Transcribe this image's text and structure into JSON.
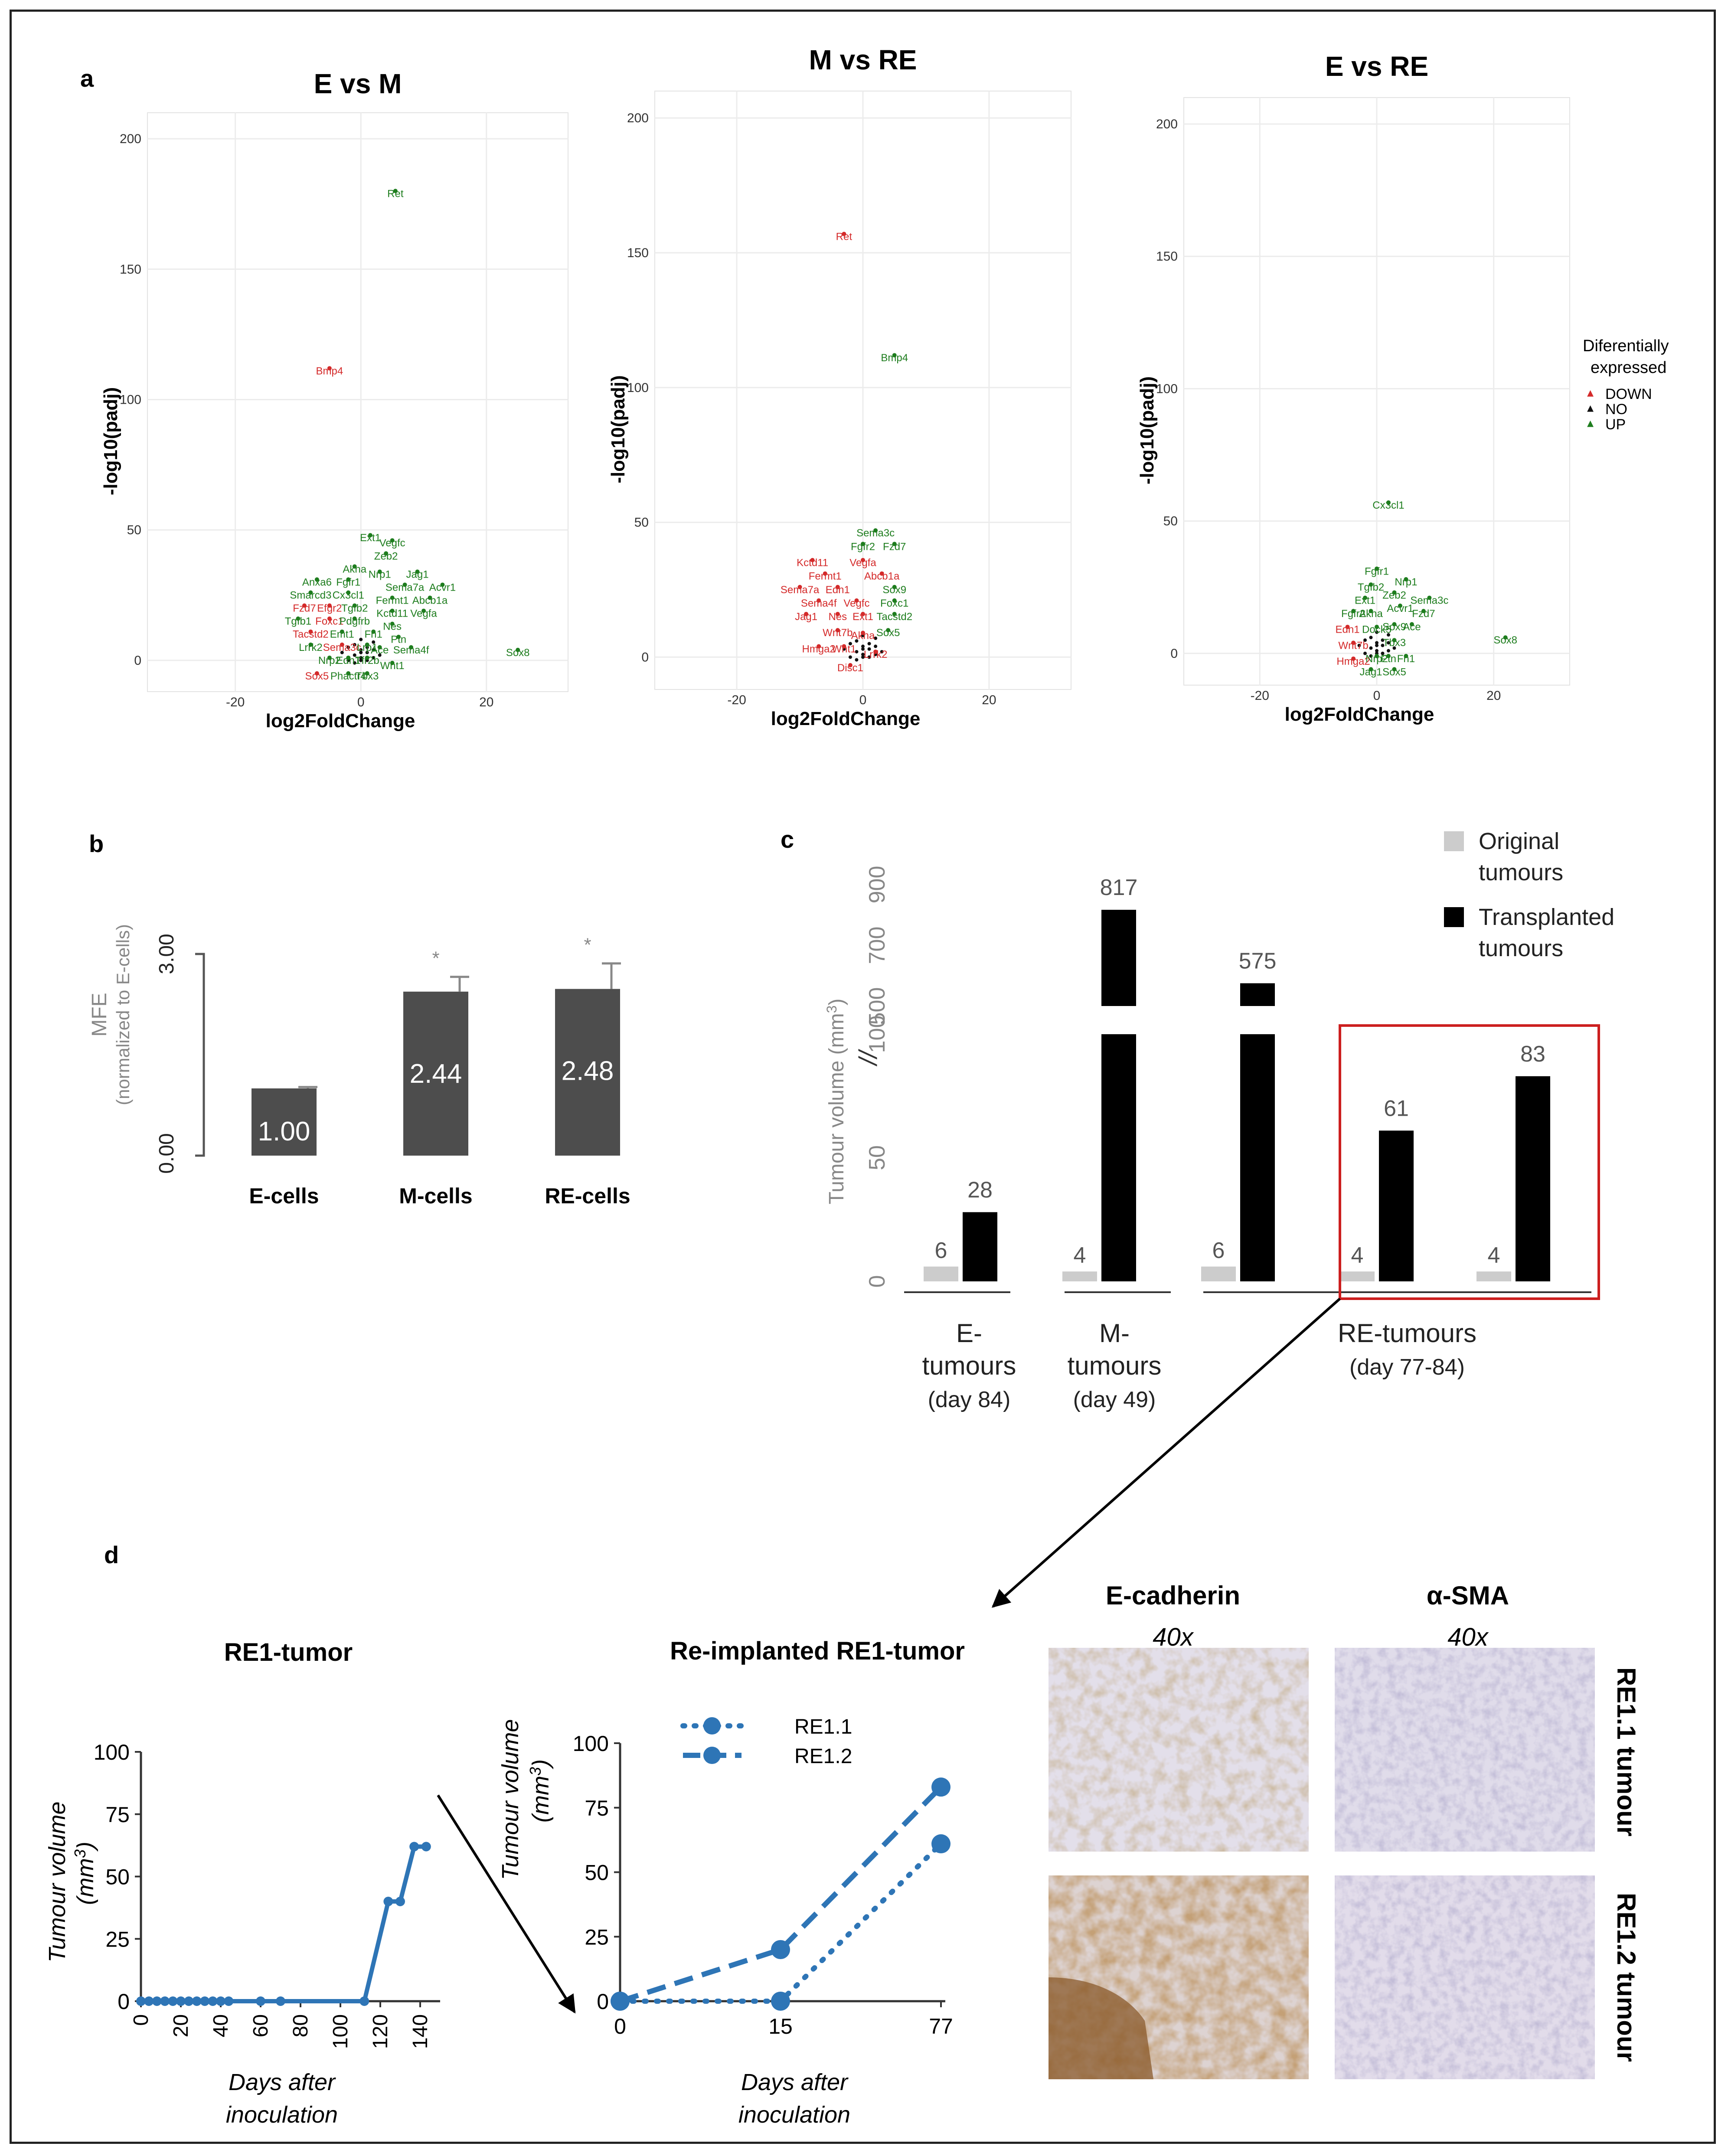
{
  "panel_labels": {
    "a": "a",
    "b": "b",
    "c": "c",
    "d": "d"
  },
  "colors": {
    "down": "#d42a2a",
    "up": "#1e7d1e",
    "no": "#111111",
    "bar_dark": "#4d4d4d",
    "bar_black": "#000000",
    "bar_light": "#cccccc",
    "line_blue": "#2e75b6",
    "highlight": "#cc1f1f"
  },
  "chart_data": [
    {
      "type": "scatter",
      "id": "volcano1",
      "title": "E vs M",
      "xlabel": "log2FoldChange",
      "ylabel": "-log10(padj)",
      "xlim": [
        -34,
        33
      ],
      "ylim": [
        -12,
        210
      ],
      "xticks": [
        -20,
        0,
        20
      ],
      "yticks": [
        0,
        50,
        100,
        150,
        200
      ],
      "labeled_points": [
        {
          "label": "Ret",
          "x": 5.5,
          "y": 180,
          "dir": "UP"
        },
        {
          "label": "Bmp4",
          "x": -5,
          "y": 112,
          "dir": "DOWN"
        },
        {
          "label": "Ext1",
          "x": 1.5,
          "y": 48,
          "dir": "UP"
        },
        {
          "label": "Vegfc",
          "x": 5,
          "y": 46,
          "dir": "UP"
        },
        {
          "label": "Zeb2",
          "x": 4,
          "y": 41,
          "dir": "UP"
        },
        {
          "label": "Akna",
          "x": -1,
          "y": 36,
          "dir": "UP"
        },
        {
          "label": "Nrp1",
          "x": 3,
          "y": 34,
          "dir": "UP"
        },
        {
          "label": "Jag1",
          "x": 9,
          "y": 34,
          "dir": "UP"
        },
        {
          "label": "Anxa6",
          "x": -7,
          "y": 31,
          "dir": "UP"
        },
        {
          "label": "Fgfr1",
          "x": -2,
          "y": 31,
          "dir": "UP"
        },
        {
          "label": "Sema7a",
          "x": 7,
          "y": 29,
          "dir": "UP"
        },
        {
          "label": "Acvr1",
          "x": 13,
          "y": 29,
          "dir": "UP"
        },
        {
          "label": "Smarcd3",
          "x": -8,
          "y": 26,
          "dir": "UP"
        },
        {
          "label": "Cx3cl1",
          "x": -2,
          "y": 26,
          "dir": "UP"
        },
        {
          "label": "Fermt1",
          "x": 5,
          "y": 24,
          "dir": "UP"
        },
        {
          "label": "Abcb1a",
          "x": 11,
          "y": 24,
          "dir": "UP"
        },
        {
          "label": "Fzd7",
          "x": -9,
          "y": 21,
          "dir": "DOWN"
        },
        {
          "label": "Efgr2",
          "x": -5,
          "y": 21,
          "dir": "DOWN"
        },
        {
          "label": "Tgfb2",
          "x": -1,
          "y": 21,
          "dir": "UP"
        },
        {
          "label": "Kctd11",
          "x": 5,
          "y": 19,
          "dir": "UP"
        },
        {
          "label": "Vegfa",
          "x": 10,
          "y": 19,
          "dir": "UP"
        },
        {
          "label": "Tgfb1",
          "x": -10,
          "y": 16,
          "dir": "UP"
        },
        {
          "label": "Foxc1",
          "x": -5,
          "y": 16,
          "dir": "DOWN"
        },
        {
          "label": "Pdgfrb",
          "x": -1,
          "y": 16,
          "dir": "UP"
        },
        {
          "label": "Nes",
          "x": 5,
          "y": 14,
          "dir": "UP"
        },
        {
          "label": "Tacstd2",
          "x": -8,
          "y": 11,
          "dir": "DOWN"
        },
        {
          "label": "Emt1",
          "x": -3,
          "y": 11,
          "dir": "UP"
        },
        {
          "label": "Fn1",
          "x": 2,
          "y": 11,
          "dir": "UP"
        },
        {
          "label": "Ptn",
          "x": 6,
          "y": 9,
          "dir": "UP"
        },
        {
          "label": "Lrrk2",
          "x": -8,
          "y": 6,
          "dir": "UP"
        },
        {
          "label": "Sema3c",
          "x": -3,
          "y": 6,
          "dir": "DOWN"
        },
        {
          "label": "Lrp1",
          "x": 1,
          "y": 6,
          "dir": "UP"
        },
        {
          "label": "Ace",
          "x": 3,
          "y": 5,
          "dir": "UP"
        },
        {
          "label": "Sema4f",
          "x": 8,
          "y": 5,
          "dir": "UP"
        },
        {
          "label": "Nrp2",
          "x": -5,
          "y": 1,
          "dir": "UP"
        },
        {
          "label": "Edn1",
          "x": -2,
          "y": 1,
          "dir": "UP"
        },
        {
          "label": "Tfr2b",
          "x": 1,
          "y": 1,
          "dir": "UP"
        },
        {
          "label": "Wnt1",
          "x": 5,
          "y": -1,
          "dir": "UP"
        },
        {
          "label": "Sox8",
          "x": 25,
          "y": 4,
          "dir": "UP"
        },
        {
          "label": "Sox5",
          "x": -7,
          "y": -5,
          "dir": "DOWN"
        },
        {
          "label": "Phactr4",
          "x": -2,
          "y": -5,
          "dir": "UP"
        },
        {
          "label": "Tbx3",
          "x": 1,
          "y": -5,
          "dir": "UP"
        }
      ]
    },
    {
      "type": "scatter",
      "id": "volcano2",
      "title": "M vs RE",
      "xlabel": "log2FoldChange",
      "ylabel": "-log10(padj)",
      "xlim": [
        -33,
        33
      ],
      "ylim": [
        -12,
        210
      ],
      "xticks": [
        -20,
        0,
        20
      ],
      "yticks": [
        0,
        50,
        100,
        150,
        200
      ],
      "labeled_points": [
        {
          "label": "Ret",
          "x": -3,
          "y": 157,
          "dir": "DOWN"
        },
        {
          "label": "Bmp4",
          "x": 5,
          "y": 112,
          "dir": "UP"
        },
        {
          "label": "Sema3c",
          "x": 2,
          "y": 47,
          "dir": "UP"
        },
        {
          "label": "Fgfr2",
          "x": 0,
          "y": 42,
          "dir": "UP"
        },
        {
          "label": "Fzd7",
          "x": 5,
          "y": 42,
          "dir": "UP"
        },
        {
          "label": "Kctd11",
          "x": -8,
          "y": 36,
          "dir": "DOWN"
        },
        {
          "label": "Vegfa",
          "x": 0,
          "y": 36,
          "dir": "DOWN"
        },
        {
          "label": "Fermt1",
          "x": -6,
          "y": 31,
          "dir": "DOWN"
        },
        {
          "label": "Abcb1a",
          "x": 3,
          "y": 31,
          "dir": "DOWN"
        },
        {
          "label": "Sema7a",
          "x": -10,
          "y": 26,
          "dir": "DOWN"
        },
        {
          "label": "Edn1",
          "x": -4,
          "y": 26,
          "dir": "DOWN"
        },
        {
          "label": "Sox9",
          "x": 5,
          "y": 26,
          "dir": "UP"
        },
        {
          "label": "Sema4f",
          "x": -7,
          "y": 21,
          "dir": "DOWN"
        },
        {
          "label": "Vegfc",
          "x": -1,
          "y": 21,
          "dir": "DOWN"
        },
        {
          "label": "Foxc1",
          "x": 5,
          "y": 21,
          "dir": "UP"
        },
        {
          "label": "Jag1",
          "x": -9,
          "y": 16,
          "dir": "DOWN"
        },
        {
          "label": "Nes",
          "x": -4,
          "y": 16,
          "dir": "DOWN"
        },
        {
          "label": "Ext1",
          "x": 0,
          "y": 16,
          "dir": "DOWN"
        },
        {
          "label": "Tacstd2",
          "x": 5,
          "y": 16,
          "dir": "UP"
        },
        {
          "label": "Wnt7b",
          "x": -4,
          "y": 10,
          "dir": "DOWN"
        },
        {
          "label": "Akna",
          "x": 0,
          "y": 9,
          "dir": "DOWN"
        },
        {
          "label": "Sox5",
          "x": 4,
          "y": 10,
          "dir": "UP"
        },
        {
          "label": "Hmga2",
          "x": -7,
          "y": 4,
          "dir": "DOWN"
        },
        {
          "label": "Wnt1",
          "x": -3,
          "y": 4,
          "dir": "DOWN"
        },
        {
          "label": "Lrrk2",
          "x": 2,
          "y": 2,
          "dir": "DOWN"
        },
        {
          "label": "Disc1",
          "x": -2,
          "y": -3,
          "dir": "DOWN"
        }
      ]
    },
    {
      "type": "scatter",
      "id": "volcano3",
      "title": "E vs RE",
      "xlabel": "log2FoldChange",
      "ylabel": "-log10(padj)",
      "xlim": [
        -33,
        33
      ],
      "ylim": [
        -12,
        210
      ],
      "xticks": [
        -20,
        0,
        20
      ],
      "yticks": [
        0,
        50,
        100,
        150,
        200
      ],
      "legend": {
        "title": "Diferentially expressed",
        "entries": [
          "DOWN",
          "NO",
          "UP"
        ],
        "position": "right"
      },
      "labeled_points": [
        {
          "label": "Cx3cl1",
          "x": 2,
          "y": 57,
          "dir": "UP"
        },
        {
          "label": "Fgfr1",
          "x": 0,
          "y": 32,
          "dir": "UP"
        },
        {
          "label": "Nrp1",
          "x": 5,
          "y": 28,
          "dir": "UP"
        },
        {
          "label": "Tgfb2",
          "x": -1,
          "y": 26,
          "dir": "UP"
        },
        {
          "label": "Zeb2",
          "x": 3,
          "y": 23,
          "dir": "UP"
        },
        {
          "label": "Sema3c",
          "x": 9,
          "y": 21,
          "dir": "UP"
        },
        {
          "label": "Ext1",
          "x": -2,
          "y": 21,
          "dir": "UP"
        },
        {
          "label": "Acvr1",
          "x": 4,
          "y": 18,
          "dir": "UP"
        },
        {
          "label": "Fzd7",
          "x": 8,
          "y": 16,
          "dir": "UP"
        },
        {
          "label": "Fgfr2",
          "x": -4,
          "y": 16,
          "dir": "UP"
        },
        {
          "label": "Akna",
          "x": -1,
          "y": 16,
          "dir": "UP"
        },
        {
          "label": "Edn1",
          "x": -5,
          "y": 10,
          "dir": "DOWN"
        },
        {
          "label": "Dock5",
          "x": 0,
          "y": 10,
          "dir": "UP"
        },
        {
          "label": "Sox9",
          "x": 3,
          "y": 11,
          "dir": "UP"
        },
        {
          "label": "Ace",
          "x": 6,
          "y": 11,
          "dir": "UP"
        },
        {
          "label": "Wnt7b",
          "x": -4,
          "y": 4,
          "dir": "DOWN"
        },
        {
          "label": "Tbx3",
          "x": 3,
          "y": 5,
          "dir": "UP"
        },
        {
          "label": "Hmga2",
          "x": -4,
          "y": -2,
          "dir": "DOWN"
        },
        {
          "label": "Nrp2",
          "x": 0,
          "y": -1,
          "dir": "UP"
        },
        {
          "label": "Ptn",
          "x": 2,
          "y": -1,
          "dir": "UP"
        },
        {
          "label": "Fn1",
          "x": 5,
          "y": -1,
          "dir": "UP"
        },
        {
          "label": "Jag1",
          "x": -1,
          "y": -6,
          "dir": "UP"
        },
        {
          "label": "Sox5",
          "x": 3,
          "y": -6,
          "dir": "UP"
        },
        {
          "label": "Sox8",
          "x": 22,
          "y": 6,
          "dir": "UP"
        }
      ]
    },
    {
      "type": "bar",
      "id": "mfe",
      "categories": [
        "E-cells",
        "M-cells",
        "RE-cells"
      ],
      "values": [
        1.0,
        2.44,
        2.48
      ],
      "value_labels": [
        "1.00",
        "2.44",
        "2.48"
      ],
      "errors": [
        0.02,
        0.22,
        0.38
      ],
      "significance": [
        "",
        "*",
        "*"
      ],
      "ylabel": "MFE",
      "ylabel2": "(normalized to E-cells)",
      "ylim": [
        0,
        3
      ],
      "yticks": [
        "0.00",
        "3.00"
      ]
    },
    {
      "type": "bar",
      "id": "volume",
      "ylabel": "Tumour volume (mm",
      "ylabel_sup": "3",
      "ylabel_close": ")",
      "axis_break": "//",
      "lower_ticks": [
        "0",
        "50",
        "100"
      ],
      "upper_ticks": [
        "500",
        "700",
        "900"
      ],
      "series": [
        {
          "name": "Original tumours",
          "values": [
            6,
            4,
            6,
            4,
            4
          ],
          "labels": [
            "6",
            "4",
            "6",
            "4",
            "4"
          ]
        },
        {
          "name": "Transplanted tumours",
          "values": [
            28,
            817,
            575,
            61,
            83
          ],
          "labels": [
            "28",
            "817",
            "575",
            "61",
            "83"
          ]
        }
      ],
      "legend": [
        "Original",
        "tumours",
        "Transplanted",
        "tumours"
      ],
      "groups": [
        {
          "lines": [
            "E-",
            "tumours",
            "(day 84)"
          ]
        },
        {
          "lines": [
            "M-",
            "tumours",
            "(day 49)"
          ]
        },
        {
          "lines": [
            "RE-tumours",
            "(day 77-84)"
          ]
        }
      ]
    },
    {
      "type": "line",
      "id": "re1",
      "title": "RE1-tumor",
      "x": [
        0,
        4,
        8,
        12,
        16,
        20,
        24,
        28,
        32,
        36,
        40,
        44,
        60,
        70,
        112,
        124,
        130,
        137,
        143
      ],
      "y": [
        0,
        0,
        0,
        0,
        0,
        0,
        0,
        0,
        0,
        0,
        0,
        0,
        0,
        0,
        0,
        40,
        40,
        62,
        62
      ],
      "xlim": [
        0,
        150
      ],
      "ylim": [
        0,
        100
      ],
      "xticks": [
        "0",
        "20",
        "40",
        "60",
        "80",
        "100",
        "120",
        "140"
      ],
      "yticks": [
        "0",
        "25",
        "50",
        "75",
        "100"
      ],
      "ylabel": "Tumour volume",
      "ylabel2": "(mm",
      "ylabel2_sup": "3",
      "ylabel2_close": ")",
      "xlabel": [
        "Days after",
        "inoculation"
      ]
    },
    {
      "type": "line",
      "id": "reimpl",
      "title": "Re-implanted RE1-tumor",
      "categories": [
        "0",
        "15",
        "77"
      ],
      "series": [
        {
          "name": "RE1.1",
          "values": [
            0,
            0,
            61
          ],
          "style": "dotted"
        },
        {
          "name": "RE1.2",
          "values": [
            0,
            20,
            83
          ],
          "style": "dashed"
        }
      ],
      "ylim": [
        0,
        100
      ],
      "yticks": [
        "0",
        "25",
        "50",
        "75",
        "100"
      ],
      "ylabel": "Tumour volume",
      "ylabel2": "(mm",
      "ylabel2_sup": "3",
      "ylabel2_close": ")",
      "xlabel": [
        "Days after",
        "inoculation"
      ]
    }
  ],
  "histology": {
    "col1": "E-cadherin",
    "col2": "α-SMA",
    "mag": "40x",
    "row1": "RE1.1 tumour",
    "row2": "RE1.2 tumour"
  }
}
